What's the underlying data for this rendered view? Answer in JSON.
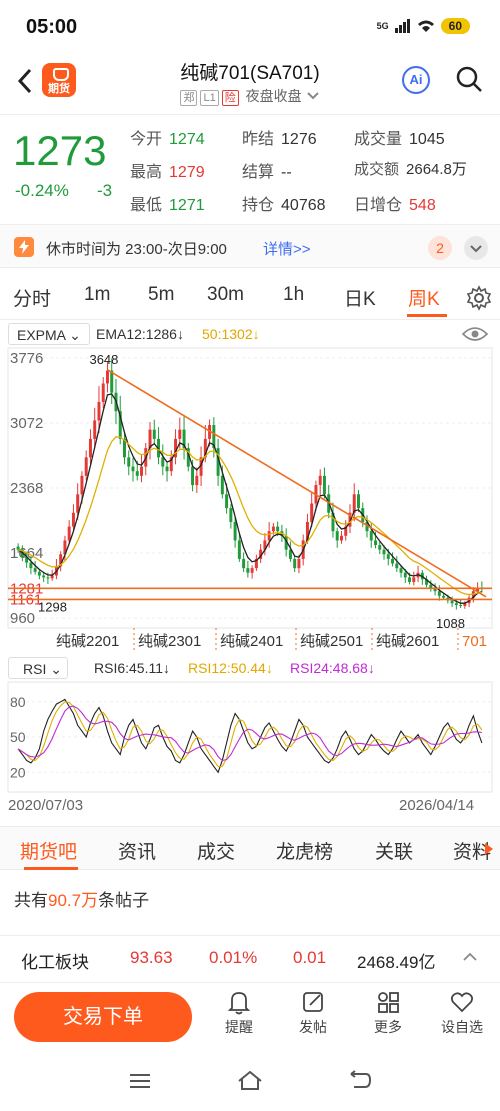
{
  "status": {
    "time": "05:00",
    "battery": "60",
    "network": "5G"
  },
  "header": {
    "title": "纯碱701(SA701)",
    "tags": [
      "郑",
      "L1",
      "险"
    ],
    "session": "夜盘收盘",
    "logo_text": "期货",
    "ai_label": "Ai"
  },
  "quote": {
    "price": "1273",
    "change_pct": "-0.24%",
    "change": "-3",
    "open_label": "今开",
    "open": "1274",
    "prev_close_label": "昨结",
    "prev_close": "1276",
    "volume_label": "成交量",
    "volume": "1045",
    "high_label": "最高",
    "high": "1279",
    "settle_label": "结算",
    "settle": "--",
    "turnover_label": "成交额",
    "turnover": "2664.8万",
    "low_label": "最低",
    "low": "1271",
    "oi_label": "持仓",
    "oi": "40768",
    "oi_chg_label": "日增仓",
    "oi_chg": "548"
  },
  "notice": {
    "text": "休市时间为 23:00-次日9:00",
    "link": "详情>>",
    "count": "2"
  },
  "periods": [
    "分时",
    "1m",
    "5m",
    "30m",
    "1h",
    "日K",
    "周K"
  ],
  "active_period": "周K",
  "indicator": {
    "name": "EXPMA",
    "ema12": "EMA12:1286",
    "ema50": "50:1302"
  },
  "rsi": {
    "name": "RSI",
    "rsi6": "RSI6:45.11",
    "rsi12": "RSI12:50.44",
    "rsi24": "RSI24:48.68"
  },
  "chart_data": {
    "type": "candlestick",
    "y_ticks": [
      "3776",
      "3072",
      "2368",
      "1664",
      "1281",
      "1161",
      "960"
    ],
    "annotations": {
      "high": "3648",
      "low_left": "1298",
      "low_right": "1088"
    },
    "contracts": [
      "纯碱2201",
      "纯碱2301",
      "纯碱2401",
      "纯碱2501",
      "纯碱2601",
      "701"
    ],
    "rsi_ticks": [
      "80",
      "50",
      "20"
    ],
    "date_start": "2020/07/03",
    "date_end": "2026/04/14",
    "series_close": [
      1700,
      1620,
      1560,
      1500,
      1460,
      1420,
      1400,
      1390,
      1420,
      1520,
      1650,
      1800,
      1950,
      2100,
      2300,
      2500,
      2700,
      2900,
      3100,
      3300,
      3500,
      3640,
      3400,
      3200,
      2900,
      2700,
      2600,
      2550,
      2500,
      2600,
      2800,
      3000,
      2900,
      2700,
      2600,
      2550,
      2700,
      2900,
      3000,
      2800,
      2600,
      2400,
      2500,
      2700,
      2900,
      3050,
      2800,
      2500,
      2300,
      2150,
      2000,
      1800,
      1600,
      1500,
      1450,
      1500,
      1600,
      1700,
      1800,
      1900,
      1950,
      1900,
      1850,
      1700,
      1600,
      1500,
      1600,
      1800,
      2000,
      2200,
      2400,
      2500,
      2300,
      2100,
      1900,
      1800,
      1850,
      1950,
      2100,
      2300,
      2150,
      2000,
      1900,
      1800,
      1750,
      1700,
      1650,
      1600,
      1550,
      1500,
      1450,
      1400,
      1350,
      1400,
      1450,
      1380,
      1320,
      1280,
      1250,
      1200,
      1180,
      1150,
      1120,
      1100,
      1090,
      1120,
      1180,
      1250,
      1290,
      1273
    ],
    "rsi6": [
      40,
      35,
      30,
      28,
      32,
      40,
      55,
      65,
      72,
      78,
      80,
      82,
      76,
      70,
      60,
      55,
      50,
      62,
      70,
      75,
      68,
      55,
      45,
      40,
      35,
      50,
      60,
      65,
      55,
      45,
      40,
      48,
      58,
      60,
      50,
      42,
      38,
      30,
      28,
      35,
      45,
      55,
      50,
      40,
      35,
      30,
      25,
      20,
      30,
      45,
      60,
      70,
      65,
      55,
      45,
      40,
      42,
      50,
      58,
      62,
      55,
      48,
      42,
      38,
      45,
      55,
      65,
      60,
      50,
      45,
      40,
      35,
      30,
      28,
      32,
      40,
      50,
      55,
      48,
      40,
      35,
      38,
      45,
      52,
      48,
      42,
      38,
      35,
      40,
      48,
      55,
      50,
      45,
      48,
      52,
      45,
      40,
      35,
      42,
      50,
      58,
      62,
      55,
      48,
      45,
      50,
      60,
      68,
      55,
      45
    ]
  },
  "subtabs": [
    "期货吧",
    "资讯",
    "成交",
    "龙虎榜",
    "关联",
    "资料"
  ],
  "posts": {
    "prefix": "共有",
    "count": "90.7万",
    "suffix": "条帖子"
  },
  "sector": {
    "name": "化工板块",
    "value": "93.63",
    "pct": "0.01%",
    "chg": "0.01",
    "amount": "2468.49亿"
  },
  "bottom": {
    "trade": "交易下单",
    "items": [
      "提醒",
      "发帖",
      "更多",
      "设自选"
    ]
  }
}
